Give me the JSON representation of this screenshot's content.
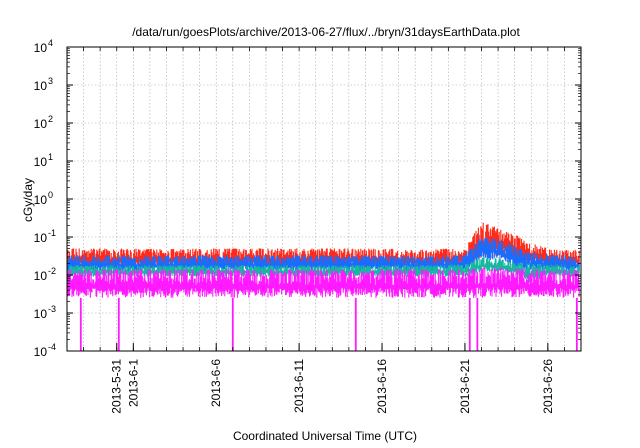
{
  "chart_data": {
    "type": "line",
    "title": "/data/run/goesPlots/archive/2013-06-27/flux/../bryn/31daysEarthData.plot",
    "xlabel": "Coordinated Universal Time (UTC)",
    "ylabel": "cGy/day",
    "y_scale": "log",
    "ylim": [
      0.0001,
      10000
    ],
    "xlim": [
      "2013-05-28",
      "2013-06-28"
    ],
    "grid": true,
    "legend": "none",
    "y_ticks": [
      {
        "value": 0.0001,
        "base": "10",
        "exp": "-4"
      },
      {
        "value": 0.001,
        "base": "10",
        "exp": "-3"
      },
      {
        "value": 0.01,
        "base": "10",
        "exp": "-2"
      },
      {
        "value": 0.1,
        "base": "10",
        "exp": "-1"
      },
      {
        "value": 1,
        "base": "10",
        "exp": "0"
      },
      {
        "value": 10,
        "base": "10",
        "exp": "1"
      },
      {
        "value": 100,
        "base": "10",
        "exp": "2"
      },
      {
        "value": 1000,
        "base": "10",
        "exp": "3"
      },
      {
        "value": 10000,
        "base": "10",
        "exp": "4"
      }
    ],
    "x_ticks": [
      "2013-5-31",
      "2013-6-1",
      "2013-6-6",
      "2013-6-11",
      "2013-6-16",
      "2013-6-21",
      "2013-6-26"
    ],
    "series": [
      {
        "color": "#ff2a1a",
        "x": [
          "2013-05-28",
          "2013-05-31",
          "2013-06-03",
          "2013-06-06",
          "2013-06-09",
          "2013-06-12",
          "2013-06-15",
          "2013-06-18",
          "2013-06-21",
          "2013-06-22",
          "2013-06-23",
          "2013-06-24",
          "2013-06-25",
          "2013-06-26",
          "2013-06-28"
        ],
        "low": [
          0.014,
          0.015,
          0.015,
          0.015,
          0.015,
          0.015,
          0.015,
          0.015,
          0.016,
          0.03,
          0.03,
          0.022,
          0.02,
          0.015,
          0.015
        ],
        "high": [
          0.05,
          0.05,
          0.048,
          0.05,
          0.05,
          0.05,
          0.05,
          0.048,
          0.05,
          0.25,
          0.18,
          0.12,
          0.07,
          0.05,
          0.045
        ]
      },
      {
        "color": "#1a6cff",
        "x": [
          "2013-05-28",
          "2013-05-31",
          "2013-06-03",
          "2013-06-06",
          "2013-06-09",
          "2013-06-12",
          "2013-06-15",
          "2013-06-18",
          "2013-06-21",
          "2013-06-22",
          "2013-06-23",
          "2013-06-24",
          "2013-06-25",
          "2013-06-26",
          "2013-06-28"
        ],
        "low": [
          0.012,
          0.012,
          0.012,
          0.012,
          0.012,
          0.012,
          0.012,
          0.012,
          0.013,
          0.025,
          0.025,
          0.015,
          0.012,
          0.012,
          0.012
        ],
        "high": [
          0.033,
          0.033,
          0.032,
          0.033,
          0.033,
          0.033,
          0.033,
          0.032,
          0.034,
          0.11,
          0.09,
          0.06,
          0.04,
          0.034,
          0.032
        ]
      },
      {
        "color": "#16b8a0",
        "x": [
          "2013-05-28",
          "2013-05-31",
          "2013-06-03",
          "2013-06-06",
          "2013-06-09",
          "2013-06-12",
          "2013-06-15",
          "2013-06-18",
          "2013-06-21",
          "2013-06-22",
          "2013-06-23",
          "2013-06-24",
          "2013-06-25",
          "2013-06-26",
          "2013-06-28"
        ],
        "low": [
          0.009,
          0.009,
          0.009,
          0.009,
          0.009,
          0.009,
          0.009,
          0.009,
          0.009,
          0.012,
          0.012,
          0.01,
          0.006,
          0.009,
          0.009
        ],
        "high": [
          0.018,
          0.018,
          0.018,
          0.018,
          0.018,
          0.018,
          0.018,
          0.018,
          0.019,
          0.03,
          0.028,
          0.022,
          0.02,
          0.019,
          0.018
        ]
      },
      {
        "color": "#ff1aff",
        "x": [
          "2013-05-28",
          "2013-05-31",
          "2013-06-03",
          "2013-06-06",
          "2013-06-09",
          "2013-06-12",
          "2013-06-15",
          "2013-06-18",
          "2013-06-21",
          "2013-06-22",
          "2013-06-23",
          "2013-06-24",
          "2013-06-25",
          "2013-06-26",
          "2013-06-28"
        ],
        "low": [
          0.0025,
          0.0025,
          0.0025,
          0.0025,
          0.0025,
          0.0025,
          0.0025,
          0.0025,
          0.0025,
          0.0025,
          0.0025,
          0.0025,
          0.0025,
          0.0025,
          0.0025
        ],
        "high": [
          0.014,
          0.014,
          0.014,
          0.014,
          0.014,
          0.014,
          0.014,
          0.014,
          0.014,
          0.016,
          0.016,
          0.015,
          0.014,
          0.014,
          0.014
        ],
        "dropouts": [
          "2013-05-28T20:00",
          "2013-05-31T03:00",
          "2013-06-07T00:00",
          "2013-06-14T10:00",
          "2013-06-21T07:00",
          "2013-06-21T18:00",
          "2013-06-27T18:00"
        ],
        "dropout_value": 0.0001
      }
    ]
  }
}
